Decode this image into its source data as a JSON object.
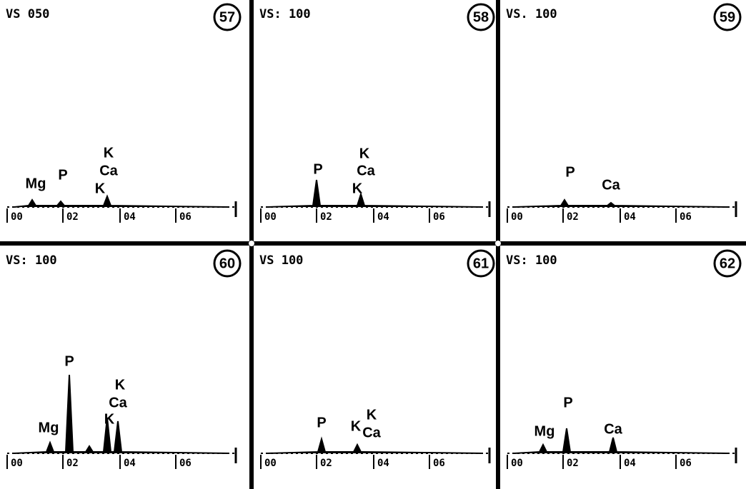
{
  "panels": [
    {
      "number": "57",
      "vs": "VS  050",
      "axis_labels": [
        "00",
        "02",
        "04",
        "06"
      ],
      "elements": [
        "Mg",
        "P",
        "K",
        "Ca",
        "K"
      ]
    },
    {
      "number": "58",
      "vs": "VS: 100",
      "axis_labels": [
        "00",
        "02",
        "04",
        "06"
      ],
      "elements": [
        "P",
        "K",
        "Ca",
        "K"
      ]
    },
    {
      "number": "59",
      "vs": "VS. 100",
      "axis_labels": [
        "00",
        "02",
        "04",
        "06"
      ],
      "elements": [
        "P",
        "Ca"
      ]
    },
    {
      "number": "60",
      "vs": "VS: 100",
      "axis_labels": [
        "00",
        "02",
        "04",
        "06"
      ],
      "elements": [
        "P",
        "K",
        "Ca",
        "K",
        "Mg"
      ]
    },
    {
      "number": "61",
      "vs": "VS  100",
      "axis_labels": [
        "00",
        "02",
        "04",
        "06"
      ],
      "elements": [
        "P",
        "K",
        "K",
        "Ca"
      ]
    },
    {
      "number": "62",
      "vs": "VS: 100",
      "axis_labels": [
        "00",
        "02",
        "04",
        "06"
      ],
      "elements": [
        "P",
        "Mg",
        "Ca"
      ]
    }
  ]
}
